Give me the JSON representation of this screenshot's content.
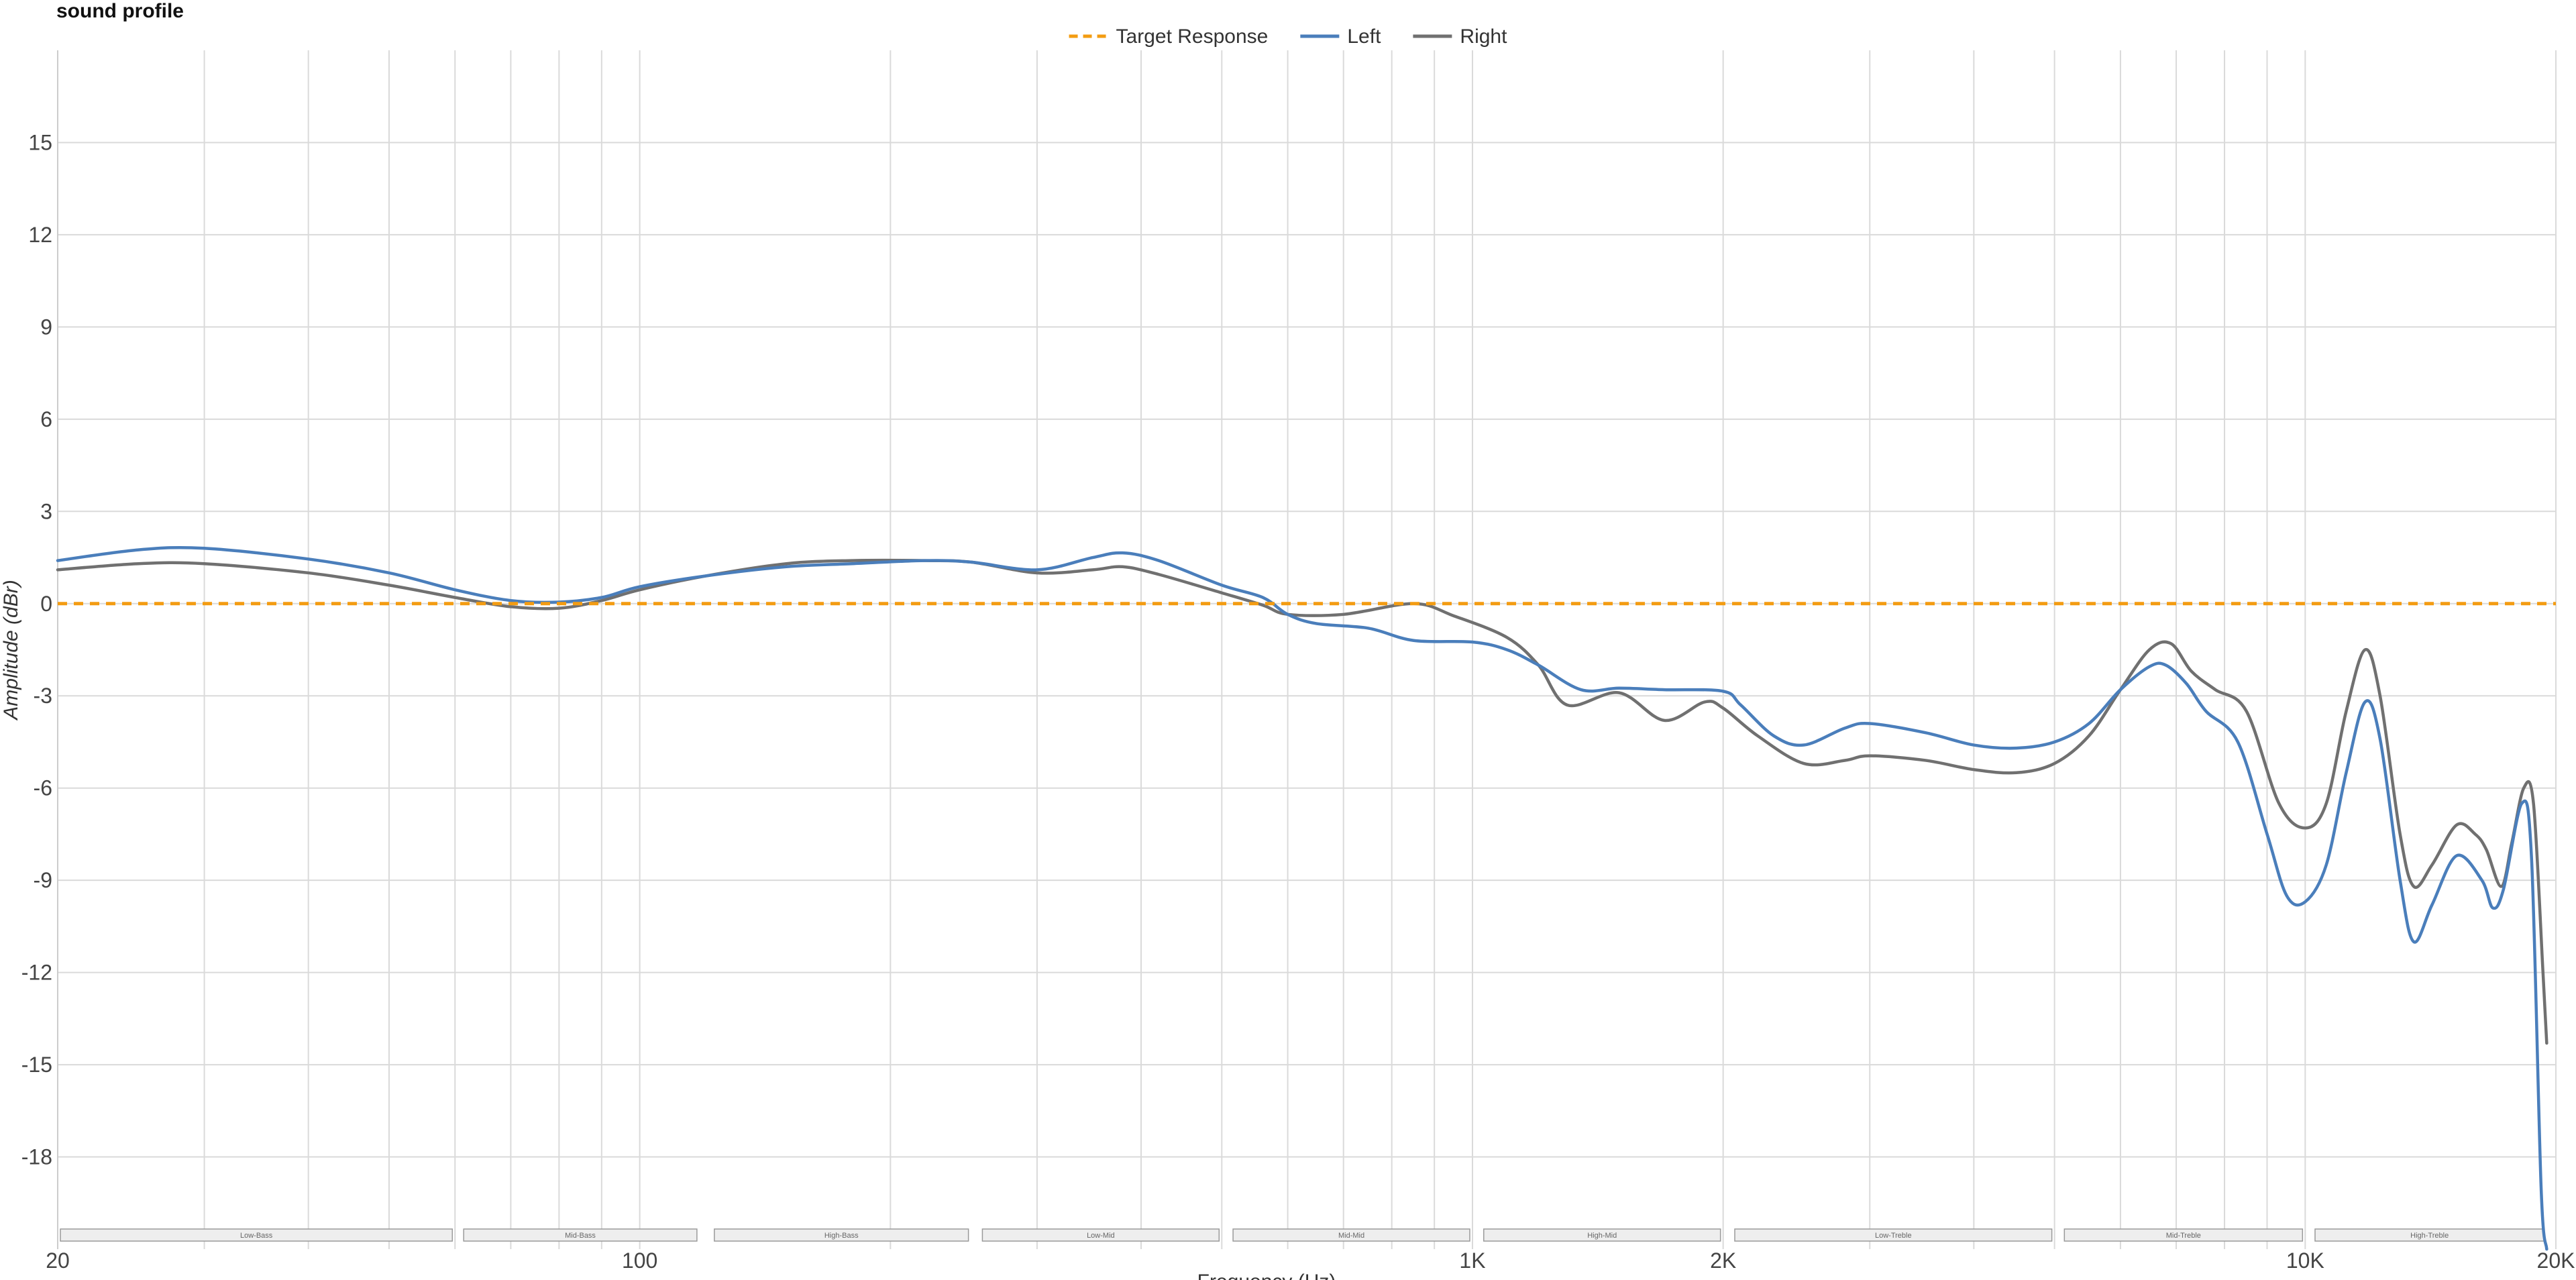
{
  "title": "sound profile",
  "chart_data": {
    "type": "line",
    "title": "sound profile",
    "xlabel": "Frequency (Hz)",
    "ylabel": "Amplitude (dBr)",
    "x_scale": "log",
    "xlim": [
      20,
      20000
    ],
    "ylim": [
      -21,
      18
    ],
    "grid": true,
    "legend_position": "top-center",
    "x_ticks": [
      {
        "value": 20,
        "label": "20"
      },
      {
        "value": 100,
        "label": "100"
      },
      {
        "value": 1000,
        "label": "1K"
      },
      {
        "value": 2000,
        "label": "2K"
      },
      {
        "value": 10000,
        "label": "10K"
      },
      {
        "value": 20000,
        "label": "20K"
      }
    ],
    "y_ticks": [
      15,
      12,
      9,
      6,
      3,
      0,
      -3,
      -6,
      -9,
      -12,
      -15,
      -18
    ],
    "bands": [
      {
        "label": "Low-Bass",
        "from": 20,
        "to": 60
      },
      {
        "label": "Mid-Bass",
        "from": 61,
        "to": 118
      },
      {
        "label": "High-Bass",
        "from": 122,
        "to": 250
      },
      {
        "label": "Low-Mid",
        "from": 256,
        "to": 500
      },
      {
        "label": "Mid-Mid",
        "from": 512,
        "to": 1000
      },
      {
        "label": "High-Mid",
        "from": 1024,
        "to": 2000
      },
      {
        "label": "Low-Treble",
        "from": 2050,
        "to": 5000
      },
      {
        "label": "Mid-Treble",
        "from": 5100,
        "to": 10000
      },
      {
        "label": "High-Treble",
        "from": 10200,
        "to": 19500
      }
    ],
    "series": [
      {
        "name": "Target Response",
        "color": "#f39c12",
        "dashed": true,
        "points": [
          [
            20,
            0
          ],
          [
            20000,
            0
          ]
        ]
      },
      {
        "name": "Left",
        "color": "#4a7ebb",
        "dashed": false,
        "points": [
          [
            20,
            1.4
          ],
          [
            25,
            1.75
          ],
          [
            30,
            1.8
          ],
          [
            40,
            1.45
          ],
          [
            50,
            1.0
          ],
          [
            60,
            0.45
          ],
          [
            70,
            0.1
          ],
          [
            80,
            0.05
          ],
          [
            90,
            0.2
          ],
          [
            100,
            0.55
          ],
          [
            120,
            0.9
          ],
          [
            150,
            1.2
          ],
          [
            180,
            1.3
          ],
          [
            220,
            1.4
          ],
          [
            250,
            1.35
          ],
          [
            300,
            1.1
          ],
          [
            350,
            1.5
          ],
          [
            380,
            1.65
          ],
          [
            420,
            1.4
          ],
          [
            500,
            0.6
          ],
          [
            560,
            0.2
          ],
          [
            600,
            -0.35
          ],
          [
            650,
            -0.65
          ],
          [
            750,
            -0.8
          ],
          [
            850,
            -1.2
          ],
          [
            1000,
            -1.25
          ],
          [
            1100,
            -1.5
          ],
          [
            1200,
            -2.0
          ],
          [
            1350,
            -2.8
          ],
          [
            1500,
            -2.75
          ],
          [
            1700,
            -2.8
          ],
          [
            2000,
            -2.85
          ],
          [
            2100,
            -3.3
          ],
          [
            2300,
            -4.3
          ],
          [
            2500,
            -4.6
          ],
          [
            2800,
            -4.05
          ],
          [
            3000,
            -3.9
          ],
          [
            3500,
            -4.2
          ],
          [
            4000,
            -4.6
          ],
          [
            4500,
            -4.7
          ],
          [
            5000,
            -4.5
          ],
          [
            5500,
            -3.9
          ],
          [
            6000,
            -2.8
          ],
          [
            6500,
            -2.05
          ],
          [
            6800,
            -2.0
          ],
          [
            7200,
            -2.6
          ],
          [
            7600,
            -3.5
          ],
          [
            8300,
            -4.5
          ],
          [
            9000,
            -7.5
          ],
          [
            9500,
            -9.5
          ],
          [
            10000,
            -9.7
          ],
          [
            10600,
            -8.5
          ],
          [
            11200,
            -5.5
          ],
          [
            11800,
            -3.2
          ],
          [
            12300,
            -4.4
          ],
          [
            13000,
            -9.0
          ],
          [
            13500,
            -11.0
          ],
          [
            14200,
            -9.8
          ],
          [
            15200,
            -8.2
          ],
          [
            16300,
            -9.0
          ],
          [
            16800,
            -9.9
          ],
          [
            17300,
            -9.3
          ],
          [
            18200,
            -6.5
          ],
          [
            18700,
            -8.3
          ],
          [
            19200,
            -19.0
          ],
          [
            19500,
            -21.0
          ]
        ]
      },
      {
        "name": "Right",
        "color": "#707070",
        "dashed": false,
        "points": [
          [
            20,
            1.1
          ],
          [
            25,
            1.3
          ],
          [
            30,
            1.3
          ],
          [
            40,
            1.0
          ],
          [
            50,
            0.6
          ],
          [
            60,
            0.2
          ],
          [
            70,
            -0.1
          ],
          [
            80,
            -0.15
          ],
          [
            90,
            0.1
          ],
          [
            100,
            0.45
          ],
          [
            120,
            0.9
          ],
          [
            150,
            1.3
          ],
          [
            180,
            1.4
          ],
          [
            220,
            1.4
          ],
          [
            250,
            1.35
          ],
          [
            300,
            1.0
          ],
          [
            350,
            1.1
          ],
          [
            380,
            1.2
          ],
          [
            420,
            0.95
          ],
          [
            500,
            0.35
          ],
          [
            560,
            -0.05
          ],
          [
            600,
            -0.35
          ],
          [
            700,
            -0.35
          ],
          [
            850,
            0.0
          ],
          [
            950,
            -0.4
          ],
          [
            1100,
            -1.1
          ],
          [
            1200,
            -2.0
          ],
          [
            1300,
            -3.3
          ],
          [
            1500,
            -2.9
          ],
          [
            1700,
            -3.8
          ],
          [
            1900,
            -3.2
          ],
          [
            2000,
            -3.4
          ],
          [
            2200,
            -4.3
          ],
          [
            2500,
            -5.2
          ],
          [
            2800,
            -5.1
          ],
          [
            3000,
            -4.95
          ],
          [
            3500,
            -5.1
          ],
          [
            4000,
            -5.4
          ],
          [
            4500,
            -5.5
          ],
          [
            5000,
            -5.2
          ],
          [
            5500,
            -4.3
          ],
          [
            6000,
            -2.8
          ],
          [
            6500,
            -1.5
          ],
          [
            6900,
            -1.3
          ],
          [
            7300,
            -2.2
          ],
          [
            7800,
            -2.8
          ],
          [
            8500,
            -3.5
          ],
          [
            9300,
            -6.5
          ],
          [
            10000,
            -7.3
          ],
          [
            10600,
            -6.5
          ],
          [
            11200,
            -3.5
          ],
          [
            11800,
            -1.5
          ],
          [
            12300,
            -3.0
          ],
          [
            13000,
            -7.5
          ],
          [
            13500,
            -9.2
          ],
          [
            14200,
            -8.5
          ],
          [
            15200,
            -7.2
          ],
          [
            16000,
            -7.5
          ],
          [
            16500,
            -8.0
          ],
          [
            17200,
            -9.2
          ],
          [
            17700,
            -7.8
          ],
          [
            18300,
            -6.0
          ],
          [
            18800,
            -6.5
          ],
          [
            19300,
            -12.0
          ],
          [
            19500,
            -14.3
          ]
        ]
      }
    ]
  }
}
